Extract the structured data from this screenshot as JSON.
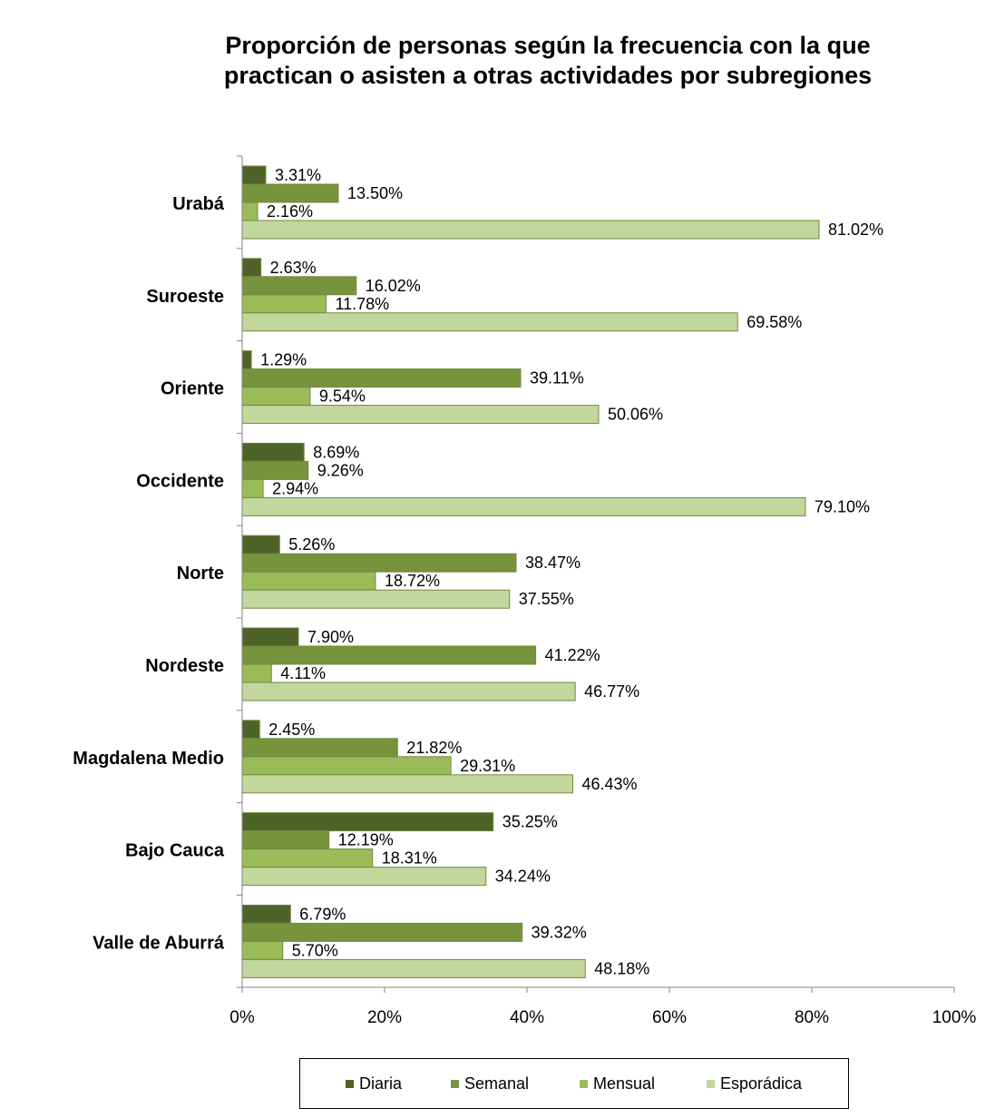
{
  "chart_data": {
    "type": "bar",
    "orientation": "horizontal",
    "title": "Proporción de personas según la frecuencia con la que practican o asisten a otras actividades por subregiones",
    "title_lines": [
      "Proporción de personas según la frecuencia con la que",
      "practican o asisten a otras actividades por subregiones"
    ],
    "categories": [
      "Urabá",
      "Suroeste",
      "Oriente",
      "Occidente",
      "Norte",
      "Nordeste",
      "Magdalena Medio",
      "Bajo Cauca",
      "Valle de Aburrá"
    ],
    "series": [
      {
        "name": "Diaria",
        "color": "#4F6228",
        "values": [
          3.31,
          2.63,
          1.29,
          8.69,
          5.26,
          7.9,
          2.45,
          35.25,
          6.79
        ],
        "labels": [
          "3.31%",
          "2.63%",
          "1.29%",
          "8.69%",
          "5.26%",
          "7.90%",
          "2.45%",
          "35.25%",
          "6.79%"
        ]
      },
      {
        "name": "Semanal",
        "color": "#77933C",
        "values": [
          13.5,
          16.02,
          39.11,
          9.26,
          38.47,
          41.22,
          21.82,
          12.19,
          39.32
        ],
        "labels": [
          "13.50%",
          "16.02%",
          "39.11%",
          "9.26%",
          "38.47%",
          "41.22%",
          "21.82%",
          "12.19%",
          "39.32%"
        ]
      },
      {
        "name": "Mensual",
        "color": "#9BBB59",
        "values": [
          2.16,
          11.78,
          9.54,
          2.94,
          18.72,
          4.11,
          29.31,
          18.31,
          5.7
        ],
        "labels": [
          "2.16%",
          "11.78%",
          "9.54%",
          "2.94%",
          "18.72%",
          "4.11%",
          "29.31%",
          "18.31%",
          "5.70%"
        ]
      },
      {
        "name": "Esporádica",
        "color": "#C3D69B",
        "values": [
          81.02,
          69.58,
          50.06,
          79.1,
          37.55,
          46.77,
          46.43,
          34.24,
          48.18
        ],
        "labels": [
          "81.02%",
          "69.58%",
          "50.06%",
          "79.10%",
          "37.55%",
          "46.77%",
          "46.43%",
          "34.24%",
          "48.18%"
        ]
      }
    ],
    "xlim": [
      0,
      100
    ],
    "x_ticks": [
      0,
      20,
      40,
      60,
      80,
      100
    ],
    "x_tick_labels": [
      "0%",
      "20%",
      "40%",
      "60%",
      "80%",
      "100%"
    ],
    "xlabel": "",
    "ylabel": "",
    "grid": false,
    "legend_position": "bottom",
    "bar_border_color": "#6E8B3D"
  }
}
